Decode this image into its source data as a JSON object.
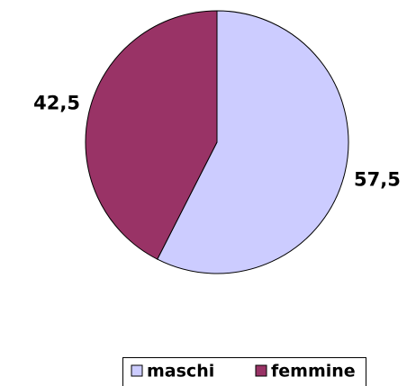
{
  "chart_data": {
    "type": "pie",
    "categories": [
      "maschi",
      "femmine"
    ],
    "values": [
      57.5,
      42.5
    ],
    "value_labels": [
      "57,5",
      "42,5"
    ],
    "colors": [
      "#ccccff",
      "#993366"
    ],
    "legend": "bottom"
  }
}
